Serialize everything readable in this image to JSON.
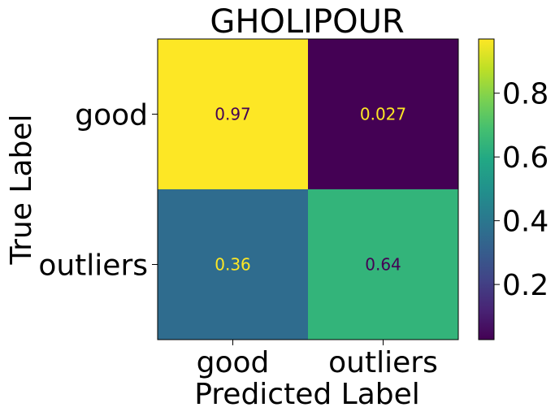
{
  "chart_data": {
    "type": "heatmap",
    "title": "GHOLIPOUR",
    "xlabel": "Predicted Label",
    "ylabel": "True Label",
    "x_categories": [
      "good",
      "outliers"
    ],
    "y_categories": [
      "good",
      "outliers"
    ],
    "values": [
      [
        0.97,
        0.027
      ],
      [
        0.36,
        0.64
      ]
    ],
    "value_labels": [
      [
        "0.97",
        "0.027"
      ],
      [
        "0.36",
        "0.64"
      ]
    ],
    "colormap": "viridis",
    "color_range": [
      0.027,
      0.97
    ],
    "colorbar_ticks": [
      0.2,
      0.4,
      0.6,
      0.8
    ],
    "colorbar_tick_labels": [
      "0.2",
      "0.4",
      "0.6",
      "0.8"
    ],
    "label_colors": {
      "on_dark": "#fde725",
      "on_light": "#440154"
    }
  }
}
